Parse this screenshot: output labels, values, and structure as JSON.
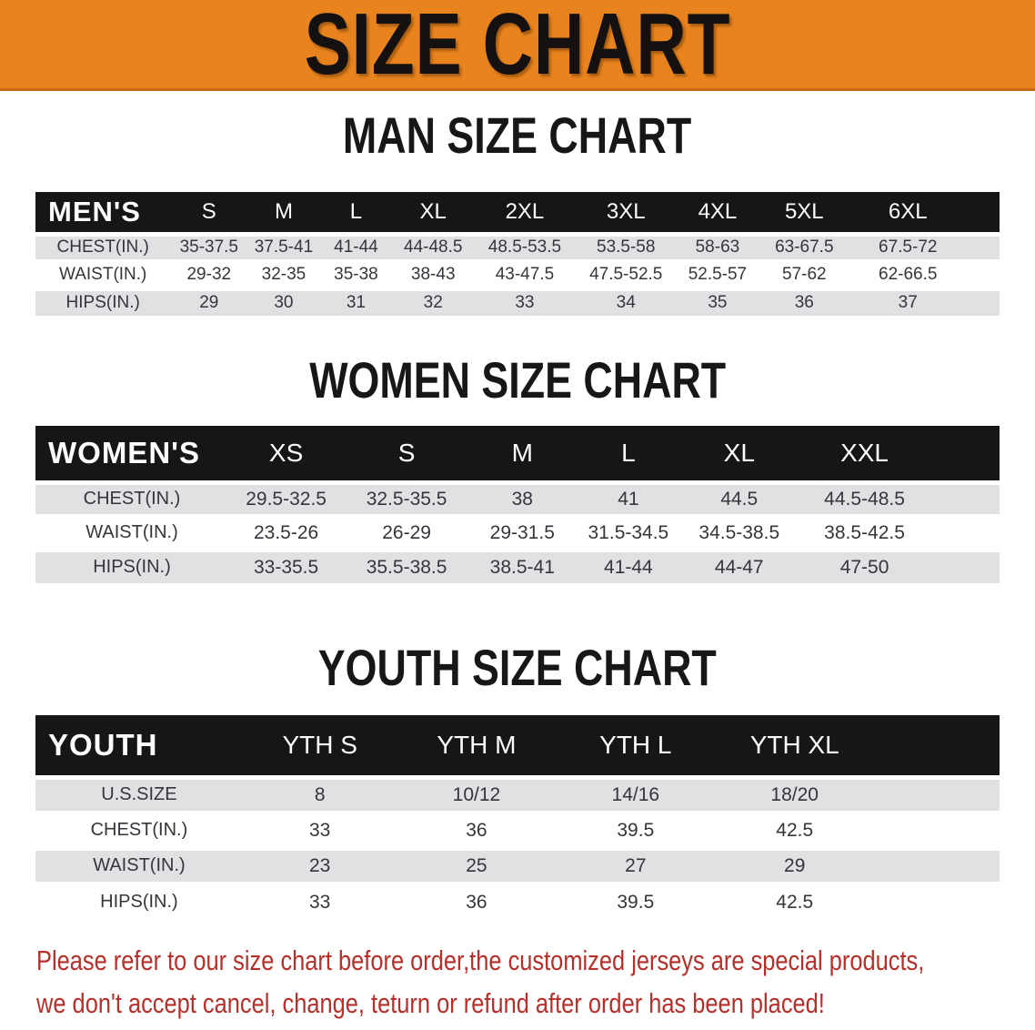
{
  "banner": {
    "title": "SIZE CHART"
  },
  "colors": {
    "banner_bg": "#E8831E",
    "banner_edge": "#c8680e",
    "header_bar": "#161616",
    "row_stripe": "#E1E1E3",
    "disclaimer_red": "#B5302A"
  },
  "tables": {
    "men": {
      "heading": "MAN SIZE CHART",
      "header": [
        "MEN'S",
        "S",
        "M",
        "L",
        "XL",
        "2XL",
        "3XL",
        "4XL",
        "5XL",
        "6XL"
      ],
      "rows": [
        {
          "label": "CHEST(IN.)",
          "values": [
            "35-37.5",
            "37.5-41",
            "41-44",
            "44-48.5",
            "48.5-53.5",
            "53.5-58",
            "58-63",
            "63-67.5",
            "67.5-72"
          ]
        },
        {
          "label": "WAIST(IN.)",
          "values": [
            "29-32",
            "32-35",
            "35-38",
            "38-43",
            "43-47.5",
            "47.5-52.5",
            "52.5-57",
            "57-62",
            "62-66.5"
          ]
        },
        {
          "label": "HIPS(IN.)",
          "values": [
            "29",
            "30",
            "31",
            "32",
            "33",
            "34",
            "35",
            "36",
            "37"
          ]
        }
      ]
    },
    "women": {
      "heading": "WOMEN SIZE CHART",
      "header": [
        "WOMEN'S",
        "XS",
        "S",
        "M",
        "L",
        "XL",
        "XXL"
      ],
      "rows": [
        {
          "label": "CHEST(IN.)",
          "values": [
            "29.5-32.5",
            "32.5-35.5",
            "38",
            "41",
            "44.5",
            "44.5-48.5"
          ]
        },
        {
          "label": "WAIST(IN.)",
          "values": [
            "23.5-26",
            "26-29",
            "29-31.5",
            "31.5-34.5",
            "34.5-38.5",
            "38.5-42.5"
          ]
        },
        {
          "label": "HIPS(IN.)",
          "values": [
            "33-35.5",
            "35.5-38.5",
            "38.5-41",
            "41-44",
            "44-47",
            "47-50"
          ]
        }
      ]
    },
    "youth": {
      "heading": "YOUTH SIZE CHART",
      "header": [
        "YOUTH",
        "YTH S",
        "YTH M",
        "YTH L",
        "YTH XL"
      ],
      "rows": [
        {
          "label": "U.S.SIZE",
          "values": [
            "8",
            "10/12",
            "14/16",
            "18/20"
          ]
        },
        {
          "label": "CHEST(IN.)",
          "values": [
            "33",
            "36",
            "39.5",
            "42.5"
          ]
        },
        {
          "label": "WAIST(IN.)",
          "values": [
            "23",
            "25",
            "27",
            "29"
          ]
        },
        {
          "label": "HIPS(IN.)",
          "values": [
            "33",
            "36",
            "39.5",
            "42.5"
          ]
        }
      ]
    }
  },
  "disclaimer": {
    "line1": "Please refer to our size chart before order,the customized jerseys are special products,",
    "line2": "we don't accept cancel, change, teturn or refund after order has been placed!"
  }
}
